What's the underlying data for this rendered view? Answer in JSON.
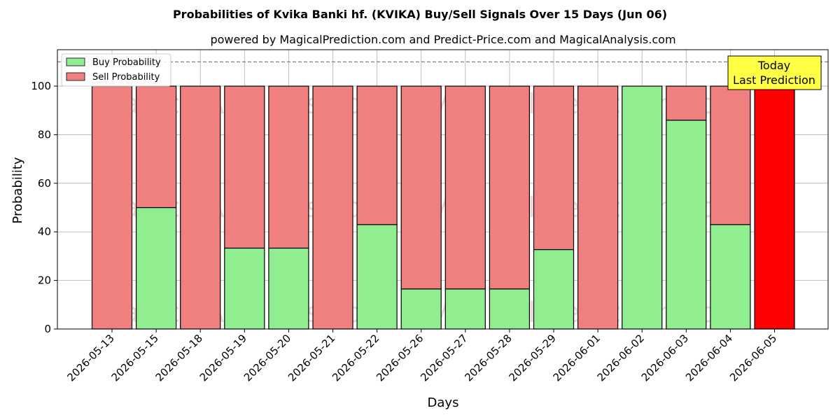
{
  "chart_data": {
    "type": "bar",
    "stacked": true,
    "title": "Probabilities of Kvika Banki hf. (KVIKA) Buy/Sell Signals Over 15 Days (Jun 06)",
    "subtitle": "powered by MagicalPrediction.com and Predict-Price.com and MagicalAnalysis.com",
    "xlabel": "Days",
    "ylabel": "Probability",
    "ylim": [
      0,
      115
    ],
    "yticks": [
      0,
      20,
      40,
      60,
      80,
      100
    ],
    "grid": true,
    "legend_position": "top-left",
    "reference_line": 110,
    "categories": [
      "2026-05-13",
      "2026-05-15",
      "2026-05-18",
      "2026-05-19",
      "2026-05-20",
      "2026-05-21",
      "2026-05-22",
      "2026-05-26",
      "2026-05-27",
      "2026-05-28",
      "2026-05-29",
      "2026-06-01",
      "2026-06-02",
      "2026-06-03",
      "2026-06-04",
      "2026-06-05"
    ],
    "series": [
      {
        "name": "Buy Probability",
        "color": "#90ee90",
        "values": [
          0,
          50,
          0,
          33.3,
          33.3,
          0,
          43,
          16.5,
          16.5,
          16.5,
          32.7,
          0,
          100,
          86,
          43,
          0
        ]
      },
      {
        "name": "Sell Probability",
        "color": "#f08080",
        "values": [
          100,
          50,
          100,
          66.7,
          66.7,
          100,
          57,
          83.5,
          83.5,
          83.5,
          67.3,
          100,
          0,
          14,
          57,
          100
        ]
      }
    ],
    "highlight": {
      "index": 15,
      "color": "#ff0000"
    },
    "annotation": {
      "lines": [
        "Today",
        "Last Prediction"
      ],
      "color": "#ffff44"
    },
    "watermarks": [
      "MagicalAnalysis.com",
      "MagicalPrediction.com"
    ]
  }
}
